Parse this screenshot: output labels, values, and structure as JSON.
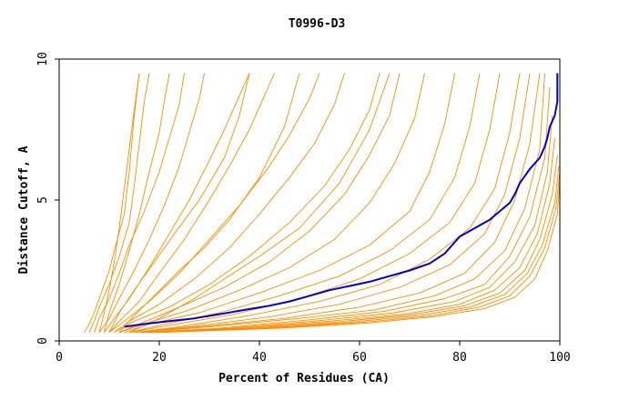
{
  "chart_data": {
    "type": "line",
    "title": "T0996-D3",
    "xlabel": "Percent of Residues (CA)",
    "ylabel": "Distance Cutoff, A",
    "xlim": [
      0,
      100
    ],
    "ylim": [
      0,
      10
    ],
    "xticks": [
      0,
      20,
      40,
      60,
      80,
      100
    ],
    "yticks": [
      0,
      5,
      10
    ],
    "grid": false,
    "legend": "none",
    "colors": {
      "highlight": "#0000cc",
      "others": "#ff8c00",
      "axis": "#000000"
    },
    "highlight_series": {
      "x": [
        13,
        17,
        22,
        27,
        32,
        37,
        42,
        46,
        50,
        54,
        58,
        62,
        66,
        70,
        74,
        77,
        79,
        80,
        83,
        86,
        88,
        90,
        91,
        92,
        94,
        96,
        97,
        97.5,
        98,
        99,
        99.5,
        99.5
      ],
      "y": [
        0.5,
        0.6,
        0.7,
        0.8,
        0.95,
        1.1,
        1.25,
        1.4,
        1.6,
        1.8,
        1.95,
        2.1,
        2.3,
        2.5,
        2.75,
        3.1,
        3.5,
        3.7,
        4.0,
        4.3,
        4.6,
        4.9,
        5.2,
        5.6,
        6.1,
        6.5,
        6.9,
        7.2,
        7.6,
        8.0,
        8.5,
        9.5
      ]
    },
    "other_series": [
      {
        "x": [
          5,
          6,
          7,
          8,
          9,
          10,
          11,
          13,
          14,
          15,
          16
        ],
        "y": [
          0.3,
          0.6,
          1.0,
          1.5,
          2.0,
          2.5,
          3.2,
          4.5,
          6.0,
          8.0,
          9.5
        ]
      },
      {
        "x": [
          6,
          7,
          8,
          10,
          12,
          14,
          15,
          16,
          17,
          18
        ],
        "y": [
          0.3,
          0.7,
          1.2,
          2.0,
          3.0,
          4.2,
          5.5,
          7.0,
          8.5,
          9.5
        ]
      },
      {
        "x": [
          7,
          8,
          10,
          12,
          14,
          17,
          20,
          22,
          24,
          25
        ],
        "y": [
          0.3,
          0.8,
          1.5,
          2.4,
          3.4,
          4.6,
          6.0,
          7.2,
          8.4,
          9.5
        ]
      },
      {
        "x": [
          8,
          10,
          12,
          15,
          18,
          21,
          24,
          26,
          28,
          29
        ],
        "y": [
          0.3,
          0.8,
          1.5,
          2.5,
          3.6,
          4.8,
          6.2,
          7.4,
          8.6,
          9.5
        ]
      },
      {
        "x": [
          9,
          11,
          14,
          18,
          22,
          26,
          30,
          33,
          36,
          38
        ],
        "y": [
          0.3,
          0.8,
          1.5,
          2.6,
          3.8,
          5.0,
          6.4,
          7.5,
          8.7,
          9.5
        ]
      },
      {
        "x": [
          10,
          12,
          16,
          20,
          25,
          30,
          34,
          38,
          41,
          43
        ],
        "y": [
          0.3,
          0.7,
          1.4,
          2.4,
          3.6,
          5.0,
          6.2,
          7.5,
          8.7,
          9.5
        ]
      },
      {
        "x": [
          10,
          13,
          18,
          24,
          30,
          36,
          42,
          46,
          50,
          52
        ],
        "y": [
          0.3,
          0.7,
          1.4,
          2.4,
          3.6,
          4.8,
          6.2,
          7.3,
          8.6,
          9.5
        ]
      },
      {
        "x": [
          11,
          14,
          20,
          27,
          34,
          40,
          46,
          51,
          55,
          57
        ],
        "y": [
          0.3,
          0.7,
          1.3,
          2.2,
          3.3,
          4.5,
          5.8,
          7.0,
          8.4,
          9.5
        ]
      },
      {
        "x": [
          11,
          15,
          22,
          30,
          38,
          46,
          53,
          58,
          62,
          64
        ],
        "y": [
          0.3,
          0.7,
          1.2,
          2.0,
          3.0,
          4.2,
          5.5,
          6.8,
          8.2,
          9.5
        ]
      },
      {
        "x": [
          12,
          16,
          24,
          33,
          42,
          50,
          57,
          62,
          66,
          68
        ],
        "y": [
          0.3,
          0.6,
          1.2,
          1.9,
          2.8,
          3.9,
          5.2,
          6.6,
          8.0,
          9.5
        ]
      },
      {
        "x": [
          12,
          17,
          26,
          36,
          46,
          55,
          62,
          67,
          71,
          73
        ],
        "y": [
          0.3,
          0.6,
          1.1,
          1.8,
          2.6,
          3.6,
          4.9,
          6.3,
          7.9,
          9.5
        ]
      },
      {
        "x": [
          13,
          18,
          28,
          40,
          52,
          62,
          70,
          74,
          77,
          79
        ],
        "y": [
          0.3,
          0.6,
          1.0,
          1.7,
          2.5,
          3.4,
          4.6,
          6.0,
          7.7,
          9.5
        ]
      },
      {
        "x": [
          14,
          20,
          32,
          44,
          56,
          66,
          74,
          79,
          82,
          84
        ],
        "y": [
          0.3,
          0.55,
          1.0,
          1.6,
          2.3,
          3.2,
          4.3,
          5.8,
          7.6,
          9.5
        ]
      },
      {
        "x": [
          14,
          22,
          35,
          48,
          60,
          70,
          78,
          83,
          86,
          88
        ],
        "y": [
          0.3,
          0.55,
          0.95,
          1.5,
          2.2,
          3.1,
          4.2,
          5.6,
          7.5,
          9.5
        ]
      },
      {
        "x": [
          15,
          24,
          38,
          52,
          64,
          74,
          82,
          87,
          90,
          92
        ],
        "y": [
          0.3,
          0.5,
          0.9,
          1.4,
          2.0,
          2.9,
          4.0,
          5.4,
          7.4,
          9.5
        ]
      },
      {
        "x": [
          15,
          26,
          42,
          56,
          68,
          78,
          85,
          89,
          92,
          94
        ],
        "y": [
          0.3,
          0.5,
          0.85,
          1.3,
          1.9,
          2.7,
          3.8,
          5.2,
          7.2,
          9.5
        ]
      },
      {
        "x": [
          16,
          28,
          45,
          60,
          72,
          81,
          87,
          91,
          94,
          96
        ],
        "y": [
          0.3,
          0.5,
          0.8,
          1.2,
          1.7,
          2.4,
          3.5,
          5.0,
          7.0,
          9.5
        ]
      },
      {
        "x": [
          16,
          30,
          48,
          63,
          75,
          83,
          89,
          93,
          96,
          97
        ],
        "y": [
          0.3,
          0.5,
          0.8,
          1.1,
          1.6,
          2.2,
          3.2,
          4.7,
          6.8,
          9.5
        ]
      },
      {
        "x": [
          17,
          32,
          50,
          65,
          77,
          85,
          90,
          94,
          97,
          98
        ],
        "y": [
          0.3,
          0.45,
          0.75,
          1.05,
          1.5,
          2.0,
          3.0,
          4.4,
          6.5,
          9.0
        ]
      },
      {
        "x": [
          17,
          34,
          52,
          67,
          79,
          86,
          91,
          95,
          97.5,
          98.5
        ],
        "y": [
          0.3,
          0.45,
          0.72,
          1.0,
          1.4,
          1.9,
          2.8,
          4.1,
          6.0,
          8.0
        ]
      },
      {
        "x": [
          18,
          36,
          54,
          69,
          80,
          87,
          92,
          95.5,
          98,
          99
        ],
        "y": [
          0.3,
          0.45,
          0.7,
          0.95,
          1.3,
          1.8,
          2.6,
          3.8,
          5.6,
          7.2
        ]
      },
      {
        "x": [
          18,
          38,
          56,
          70,
          81,
          88,
          93,
          96,
          98.5,
          99.5
        ],
        "y": [
          0.3,
          0.45,
          0.68,
          0.92,
          1.25,
          1.7,
          2.5,
          3.6,
          5.2,
          6.6
        ]
      },
      {
        "x": [
          19,
          40,
          58,
          72,
          82,
          89,
          93.5,
          96.5,
          99,
          99.8
        ],
        "y": [
          0.3,
          0.45,
          0.66,
          0.9,
          1.2,
          1.65,
          2.4,
          3.4,
          4.9,
          6.2
        ]
      },
      {
        "x": [
          19,
          42,
          60,
          74,
          84,
          90,
          94,
          97,
          99.2,
          100
        ],
        "y": [
          0.3,
          0.45,
          0.65,
          0.88,
          1.2,
          1.6,
          2.3,
          3.3,
          4.7,
          6.0
        ]
      },
      {
        "x": [
          20,
          44,
          62,
          75,
          85,
          91,
          95,
          97.5,
          99.5,
          100
        ],
        "y": [
          0.3,
          0.45,
          0.64,
          0.86,
          1.15,
          1.55,
          2.2,
          3.2,
          4.5,
          5.7
        ]
      },
      {
        "x": [
          8,
          9,
          10,
          11,
          12,
          13,
          14,
          15,
          16
        ],
        "y": [
          0.3,
          1.0,
          1.8,
          2.8,
          4.0,
          5.4,
          6.8,
          8.2,
          9.5
        ]
      },
      {
        "x": [
          9,
          10,
          12,
          14,
          16,
          18,
          20,
          21,
          22
        ],
        "y": [
          0.3,
          1.0,
          2.0,
          3.2,
          4.5,
          6.0,
          7.4,
          8.5,
          9.5
        ]
      },
      {
        "x": [
          10,
          12,
          15,
          19,
          23,
          28,
          33,
          36,
          38
        ],
        "y": [
          0.3,
          1.0,
          1.8,
          2.8,
          3.8,
          5.0,
          6.5,
          8.0,
          9.5
        ]
      },
      {
        "x": [
          12,
          15,
          19,
          24,
          29,
          34,
          40,
          45,
          48
        ],
        "y": [
          0.3,
          0.9,
          1.6,
          2.5,
          3.3,
          4.3,
          5.8,
          7.6,
          9.5
        ]
      },
      {
        "x": [
          14,
          20,
          27,
          33,
          40,
          48,
          56,
          62,
          66
        ],
        "y": [
          0.3,
          0.8,
          1.5,
          2.2,
          3.0,
          4.0,
          5.6,
          7.5,
          9.5
        ]
      }
    ]
  }
}
